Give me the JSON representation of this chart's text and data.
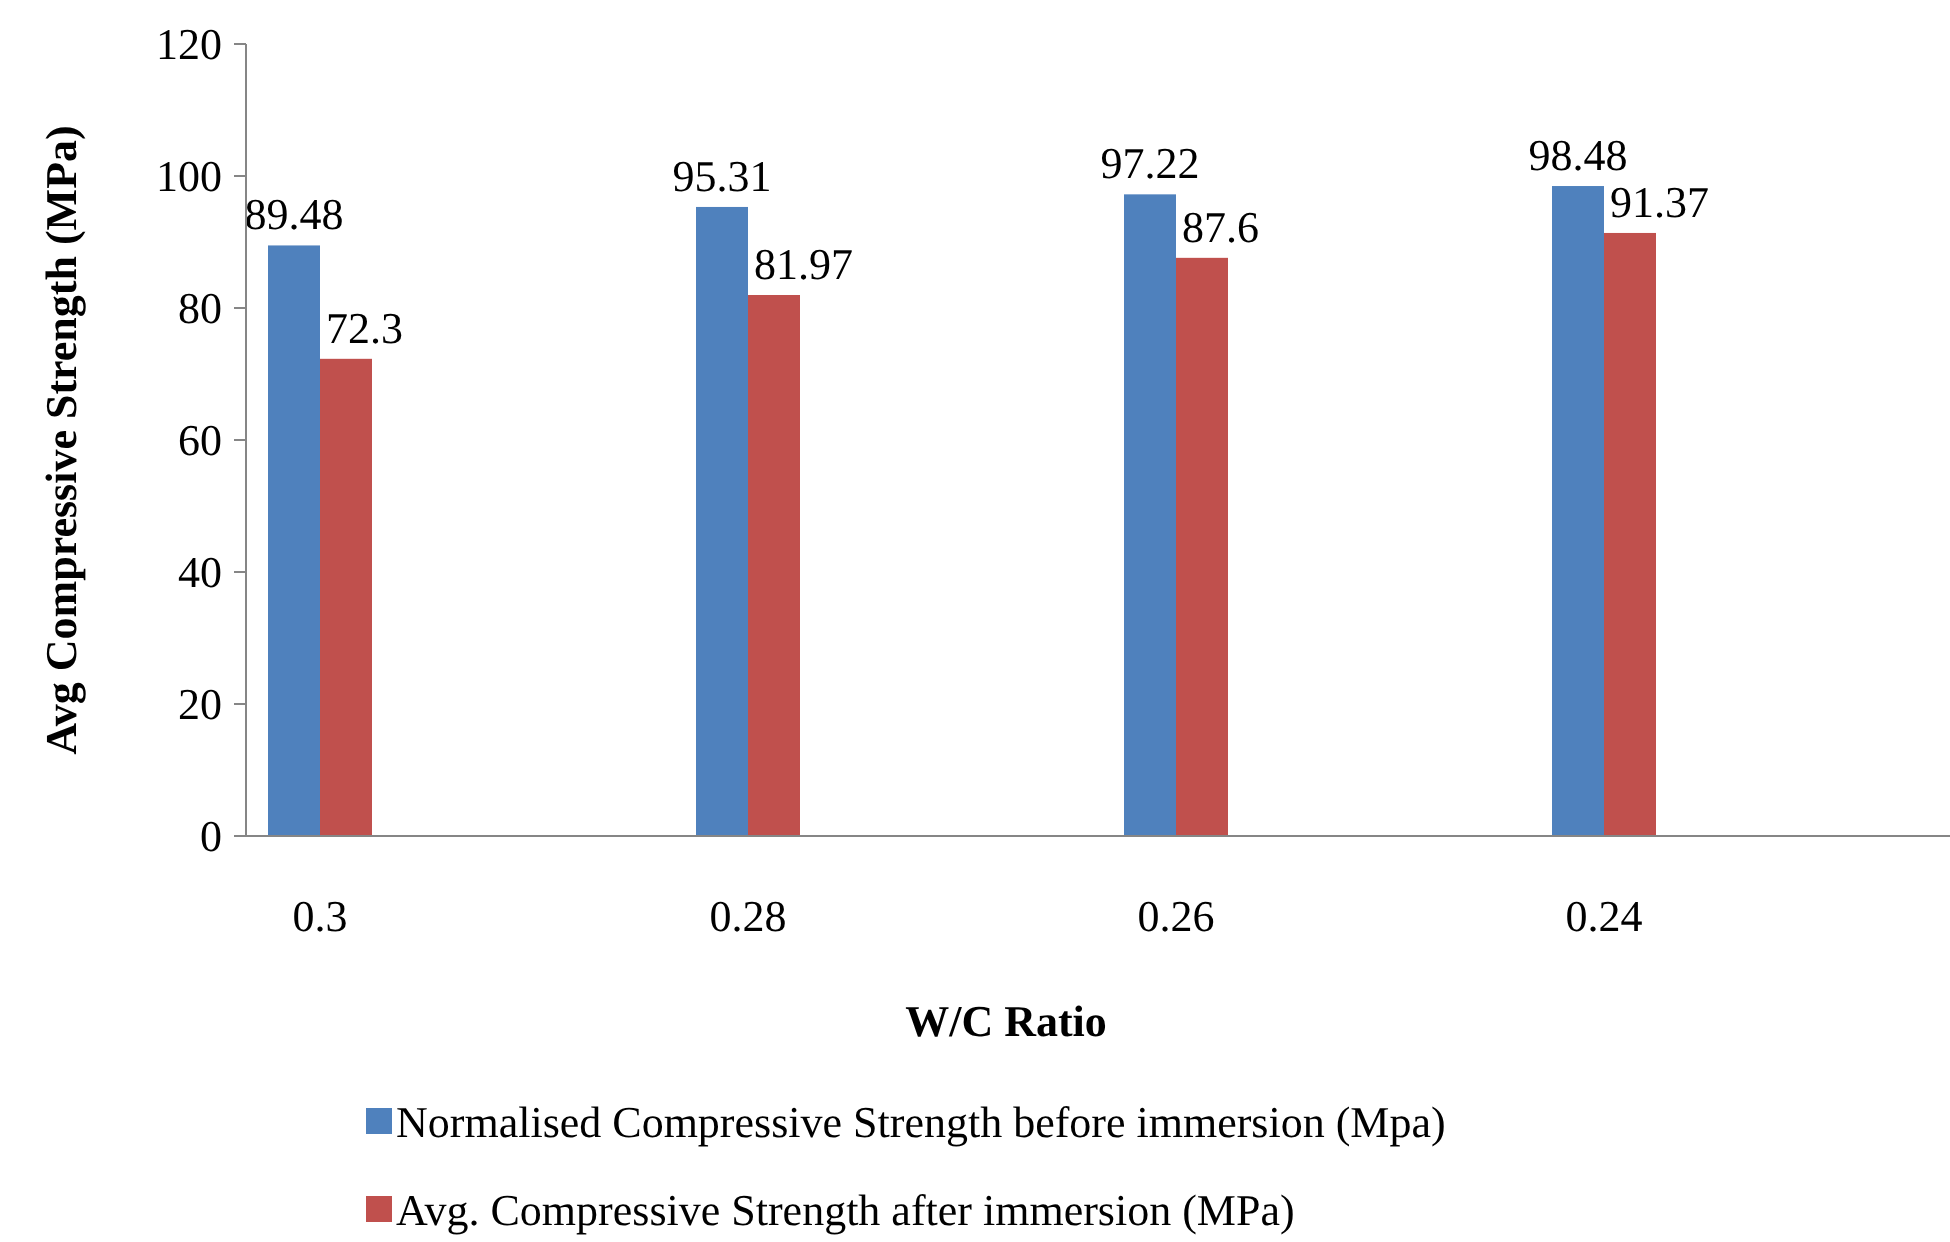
{
  "chart_data": {
    "type": "bar",
    "xlabel": "W/C Ratio",
    "ylabel": "Avg Compressive Strength (MPa)",
    "categories": [
      "0.3",
      "0.28",
      "0.26",
      "0.24"
    ],
    "series": [
      {
        "name": "Normalised Compressive Strength before immersion (Mpa)",
        "color": "#4f81bd",
        "values": [
          89.48,
          95.31,
          97.22,
          98.48
        ]
      },
      {
        "name": "Avg. Compressive Strength after immersion (MPa)",
        "color": "#c0504d",
        "values": [
          72.3,
          81.97,
          87.6,
          91.37
        ]
      }
    ],
    "ylim": [
      0,
      120
    ],
    "yticks": [
      0,
      20,
      40,
      60,
      80,
      100,
      120
    ],
    "data_labels": true,
    "grid": false,
    "legend": "bottom"
  }
}
